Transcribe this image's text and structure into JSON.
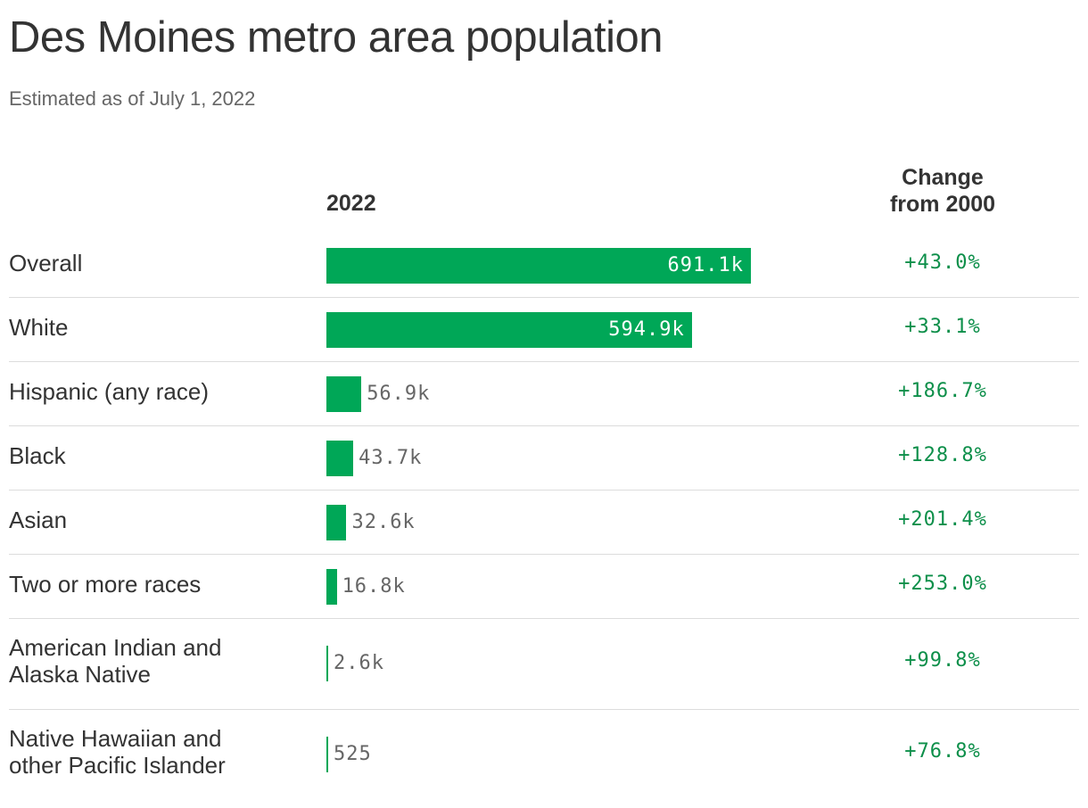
{
  "chart_data": {
    "type": "bar",
    "title": "Des Moines metro area population",
    "subtitle": "Estimated as of July 1, 2022",
    "column_headers": {
      "value": "2022",
      "change": [
        "Change",
        "from 2000"
      ]
    },
    "categories": [
      "Overall",
      "White",
      "Hispanic (any race)",
      "Black",
      "Asian",
      "Two or more races",
      "American Indian and Alaska Native",
      "Native Hawaiian and other Pacific Islander"
    ],
    "category_lines": [
      [
        "Overall"
      ],
      [
        "White"
      ],
      [
        "Hispanic (any race)"
      ],
      [
        "Black"
      ],
      [
        "Asian"
      ],
      [
        "Two or more races"
      ],
      [
        "American Indian and",
        "Alaska Native"
      ],
      [
        "Native Hawaiian and",
        "other Pacific Islander"
      ]
    ],
    "values": [
      691100,
      594900,
      56900,
      43700,
      32600,
      16800,
      2600,
      525
    ],
    "value_labels": [
      "691.1k",
      "594.9k",
      "56.9k",
      "43.7k",
      "32.6k",
      "16.8k",
      "2.6k",
      "525"
    ],
    "change_labels": [
      "+43.0%",
      "+33.1%",
      "+186.7%",
      "+128.8%",
      "+201.4%",
      "+253.0%",
      "+99.8%",
      "+76.8%"
    ],
    "xlim": [
      0,
      691100
    ],
    "grid": false,
    "legend": "none",
    "bar_color": "#00a757",
    "change_color": "#0d8f4a"
  }
}
